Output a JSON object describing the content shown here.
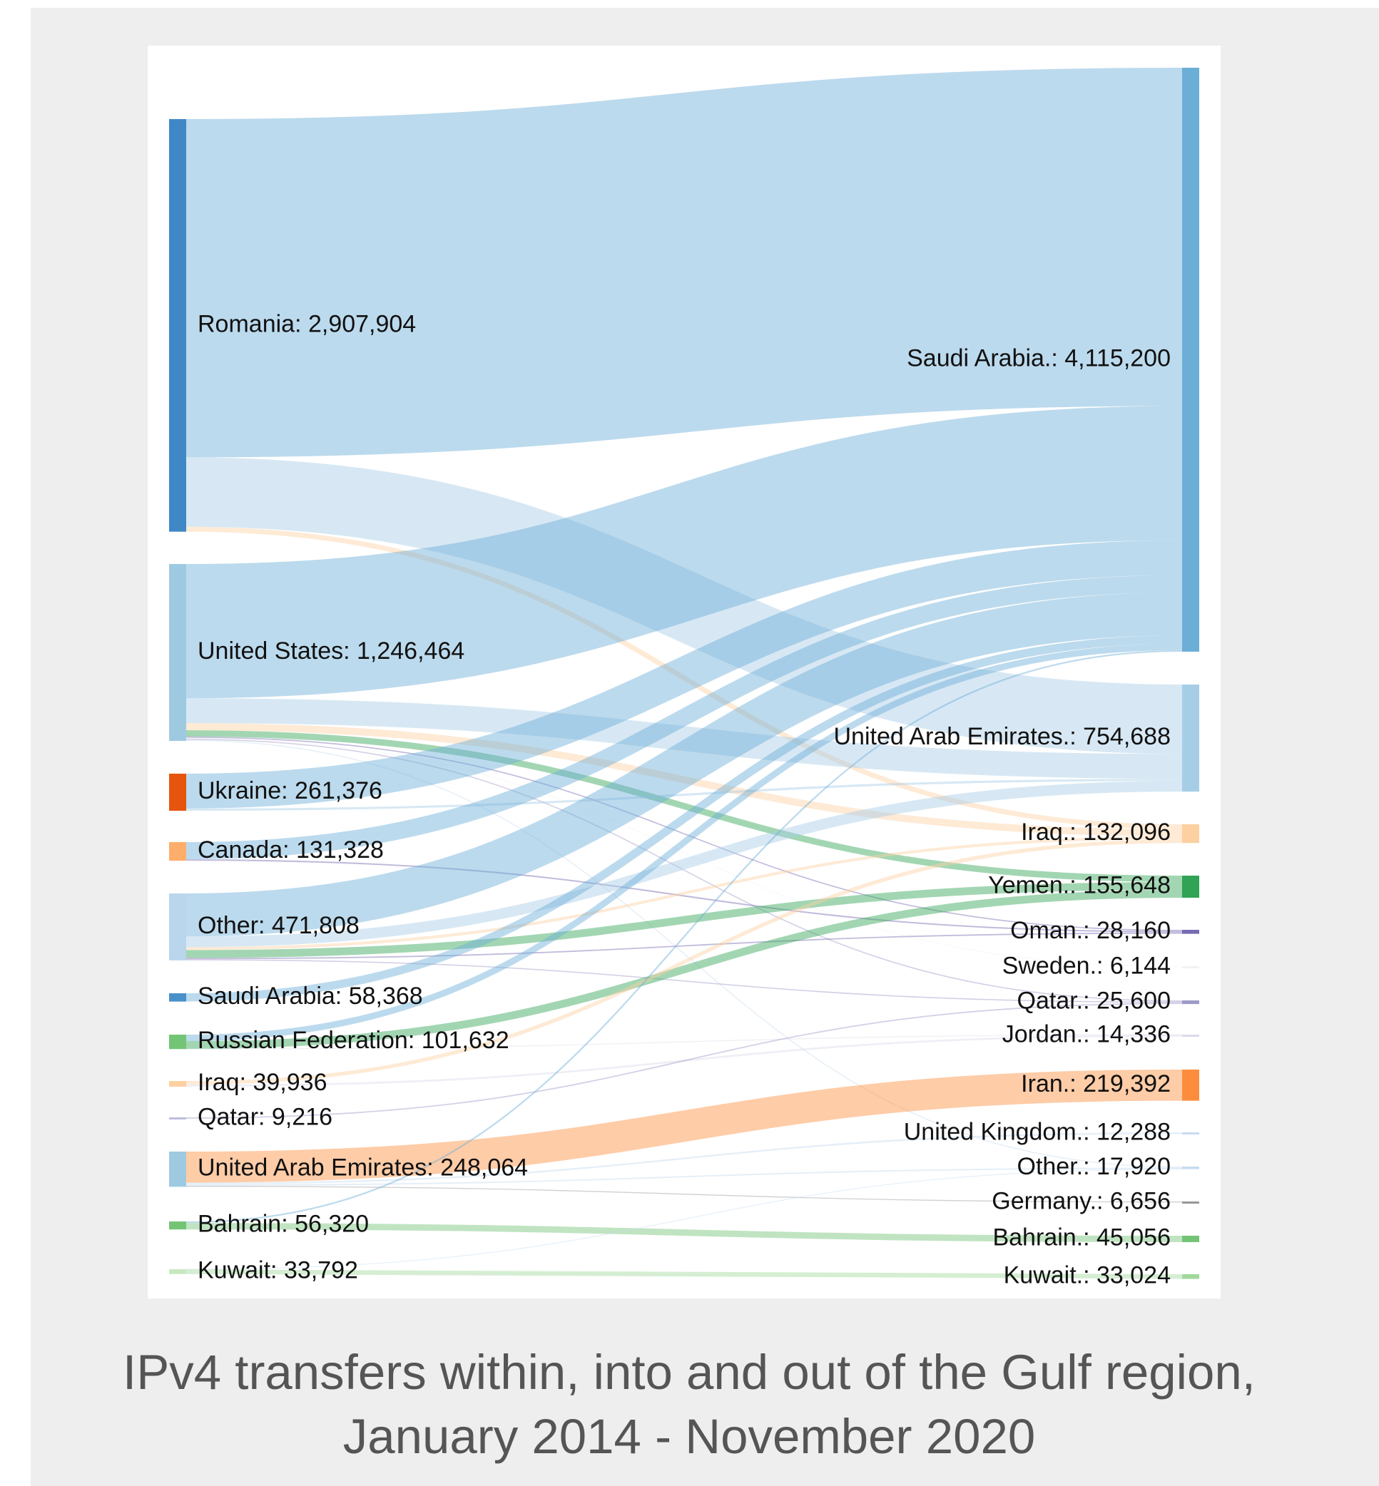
{
  "chart_data": {
    "type": "sankey",
    "title": "IPv4 transfers within, into and out of the Gulf region, January 2014 - November 2020",
    "sources": [
      {
        "label": "Romania: 2,907,904",
        "value": 2907904,
        "color": "#3f88c5"
      },
      {
        "label": "United States: 1,246,464",
        "value": 1246464,
        "color": "#9ecae1"
      },
      {
        "label": "Ukraine: 261,376",
        "value": 261376,
        "color": "#e6550d"
      },
      {
        "label": "Canada: 131,328",
        "value": 131328,
        "color": "#fdae6b"
      },
      {
        "label": "Other: 471,808",
        "value": 471808,
        "color": "#b9d6ec"
      },
      {
        "label": "Saudi Arabia: 58,368",
        "value": 58368,
        "color": "#4a90c8"
      },
      {
        "label": "Russian Federation: 101,632",
        "value": 101632,
        "color": "#74c476"
      },
      {
        "label": "Iraq: 39,936",
        "value": 39936,
        "color": "#fdd0a2"
      },
      {
        "label": "Qatar: 9,216",
        "value": 9216,
        "color": "#bcbddc"
      },
      {
        "label": "United Arab Emirates: 248,064",
        "value": 248064,
        "color": "#9ecae1"
      },
      {
        "label": "Bahrain: 56,320",
        "value": 56320,
        "color": "#74c476"
      },
      {
        "label": "Kuwait: 33,792",
        "value": 33792,
        "color": "#c7e9c0"
      }
    ],
    "targets": [
      {
        "label": "Saudi Arabia.: 4,115,200",
        "value": 4115200,
        "color": "#6baed6"
      },
      {
        "label": "United Arab Emirates.: 754,688",
        "value": 754688,
        "color": "#a6cde6"
      },
      {
        "label": "Iraq.: 132,096",
        "value": 132096,
        "color": "#fdd0a2"
      },
      {
        "label": "Yemen.: 155,648",
        "value": 155648,
        "color": "#31a354"
      },
      {
        "label": "Oman.: 28,160",
        "value": 28160,
        "color": "#756bb1"
      },
      {
        "label": "Sweden.: 6,144",
        "value": 6144,
        "color": "#f2f2f2"
      },
      {
        "label": "Qatar.: 25,600",
        "value": 25600,
        "color": "#9e9ac8"
      },
      {
        "label": "Jordan.: 14,336",
        "value": 14336,
        "color": "#dadaeb"
      },
      {
        "label": "Iran.: 219,392",
        "value": 219392,
        "color": "#fd8d3c"
      },
      {
        "label": "United Kingdom.: 12,288",
        "value": 12288,
        "color": "#c6dbef"
      },
      {
        "label": "Other.: 17,920",
        "value": 17920,
        "color": "#c6dbef"
      },
      {
        "label": "Germany.: 6,656",
        "value": 6656,
        "color": "#969696"
      },
      {
        "label": "Bahrain.: 45,056",
        "value": 45056,
        "color": "#74c476"
      },
      {
        "label": "Kuwait.: 33,024",
        "value": 33024,
        "color": "#a1d99b"
      }
    ],
    "links": [
      {
        "source": 0,
        "target": 0,
        "value": 2383872
      },
      {
        "source": 0,
        "target": 1,
        "value": 489216
      },
      {
        "source": 0,
        "target": 2,
        "value": 34816
      },
      {
        "source": 1,
        "target": 0,
        "value": 946176
      },
      {
        "source": 1,
        "target": 1,
        "value": 174848
      },
      {
        "source": 1,
        "target": 2,
        "value": 50176
      },
      {
        "source": 1,
        "target": 3,
        "value": 45056
      },
      {
        "source": 1,
        "target": 4,
        "value": 8448
      },
      {
        "source": 1,
        "target": 5,
        "value": 6144
      },
      {
        "source": 1,
        "target": 6,
        "value": 8192
      },
      {
        "source": 1,
        "target": 10,
        "value": 7424
      },
      {
        "source": 2,
        "target": 0,
        "value": 245760
      },
      {
        "source": 2,
        "target": 1,
        "value": 15616
      },
      {
        "source": 3,
        "target": 0,
        "value": 120832
      },
      {
        "source": 3,
        "target": 4,
        "value": 10496
      },
      {
        "source": 4,
        "target": 0,
        "value": 303616
      },
      {
        "source": 4,
        "target": 1,
        "value": 75008
      },
      {
        "source": 4,
        "target": 2,
        "value": 20480
      },
      {
        "source": 4,
        "target": 3,
        "value": 55296
      },
      {
        "source": 4,
        "target": 4,
        "value": 9216
      },
      {
        "source": 4,
        "target": 6,
        "value": 8192
      },
      {
        "source": 5,
        "target": 0,
        "value": 58368
      },
      {
        "source": 6,
        "target": 0,
        "value": 45312
      },
      {
        "source": 6,
        "target": 3,
        "value": 55296
      },
      {
        "source": 6,
        "target": 7,
        "value": 1024
      },
      {
        "source": 7,
        "target": 2,
        "value": 26624
      },
      {
        "source": 7,
        "target": 7,
        "value": 13312
      },
      {
        "source": 8,
        "target": 6,
        "value": 9216
      },
      {
        "source": 9,
        "target": 8,
        "value": 219392
      },
      {
        "source": 9,
        "target": 9,
        "value": 12288
      },
      {
        "source": 9,
        "target": 10,
        "value": 9728
      },
      {
        "source": 9,
        "target": 11,
        "value": 6656
      },
      {
        "source": 10,
        "target": 0,
        "value": 11264
      },
      {
        "source": 10,
        "target": 12,
        "value": 45056
      },
      {
        "source": 11,
        "target": 10,
        "value": 768
      },
      {
        "source": 11,
        "target": 13,
        "value": 33024
      }
    ]
  }
}
